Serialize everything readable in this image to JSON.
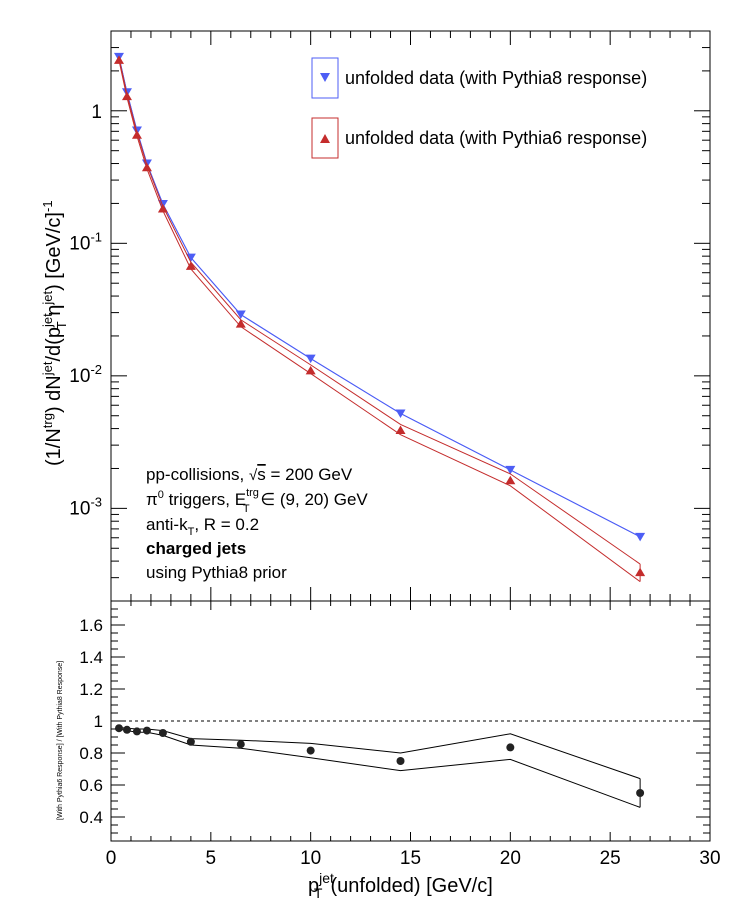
{
  "chart_data": [
    {
      "type": "line",
      "ylabel": "(1/N^trg) dN^jet/d(p_T^jet η^jet) [GeV/c]^-1",
      "yscale": "log",
      "xlim": [
        0,
        30
      ],
      "ylim": [
        0.0002,
        4
      ],
      "ytick_labels": [
        "10^-3",
        "10^-2",
        "10^-1",
        "1"
      ],
      "x": [
        0.4,
        0.8,
        1.3,
        1.8,
        2.6,
        4.0,
        6.5,
        10.0,
        14.5,
        20.0,
        26.5
      ],
      "series": [
        {
          "name": "unfolded data (with Pythia8 response)",
          "color": "#4d5ef5",
          "marker": "triangle-down",
          "values": [
            2.55,
            1.38,
            0.71,
            0.4,
            0.198,
            0.078,
            0.029,
            0.0135,
            0.0052,
            0.00195,
            0.00061
          ],
          "band": [
            [
              2.55,
              2.55
            ],
            [
              1.38,
              1.38
            ],
            [
              0.71,
              0.71
            ],
            [
              0.4,
              0.4
            ],
            [
              0.198,
              0.198
            ],
            [
              0.078,
              0.078
            ],
            [
              0.029,
              0.029
            ],
            [
              0.0135,
              0.0135
            ],
            [
              0.0052,
              0.0052
            ],
            [
              0.00195,
              0.00195
            ],
            [
              0.00061,
              0.00061
            ]
          ]
        },
        {
          "name": "unfolded data (with Pythia6 response)",
          "color": "#c42c2c",
          "marker": "triangle-up",
          "values": [
            2.42,
            1.29,
            0.66,
            0.375,
            0.183,
            0.0675,
            0.0248,
            0.011,
            0.0039,
            0.00163,
            0.00033
          ],
          "band": [
            [
              2.4,
              2.5
            ],
            [
              1.26,
              1.33
            ],
            [
              0.645,
              0.685
            ],
            [
              0.365,
              0.39
            ],
            [
              0.176,
              0.19
            ],
            [
              0.064,
              0.072
            ],
            [
              0.0235,
              0.0265
            ],
            [
              0.0104,
              0.0121
            ],
            [
              0.0036,
              0.0043
            ],
            [
              0.00148,
              0.00182
            ],
            [
              0.00028,
              0.00038
            ]
          ]
        }
      ],
      "annotations": [
        "pp-collisions, √s = 200 GeV",
        "π⁰ triggers, E_T^trg ∈ (9, 20) GeV",
        "anti-k_T, R = 0.2",
        "charged jets",
        "using Pythia8 prior"
      ]
    },
    {
      "type": "scatter",
      "xlabel": "p_T^jet (unfolded) [GeV/c]",
      "ylabel": "[With Pythia6 Response] / [With Pythia8 Response]",
      "xlim": [
        0,
        30
      ],
      "ylim": [
        0.25,
        1.75
      ],
      "xticks": [
        0,
        5,
        10,
        15,
        20,
        25,
        30
      ],
      "yticks": [
        "0.4",
        "0.6",
        "0.8",
        "1",
        "1.2",
        "1.4",
        "1.6"
      ],
      "reference_line": 1.0,
      "x": [
        0.4,
        0.8,
        1.3,
        1.8,
        2.6,
        4.0,
        6.5,
        10.0,
        14.5,
        20.0,
        26.5
      ],
      "values": [
        0.955,
        0.945,
        0.935,
        0.94,
        0.925,
        0.87,
        0.855,
        0.815,
        0.75,
        0.835,
        0.55
      ],
      "band_upper": [
        0.96,
        0.955,
        0.95,
        0.95,
        0.94,
        0.89,
        0.88,
        0.86,
        0.8,
        0.92,
        0.64
      ],
      "band_lower": [
        0.95,
        0.94,
        0.93,
        0.93,
        0.91,
        0.85,
        0.83,
        0.77,
        0.69,
        0.76,
        0.46
      ]
    }
  ]
}
